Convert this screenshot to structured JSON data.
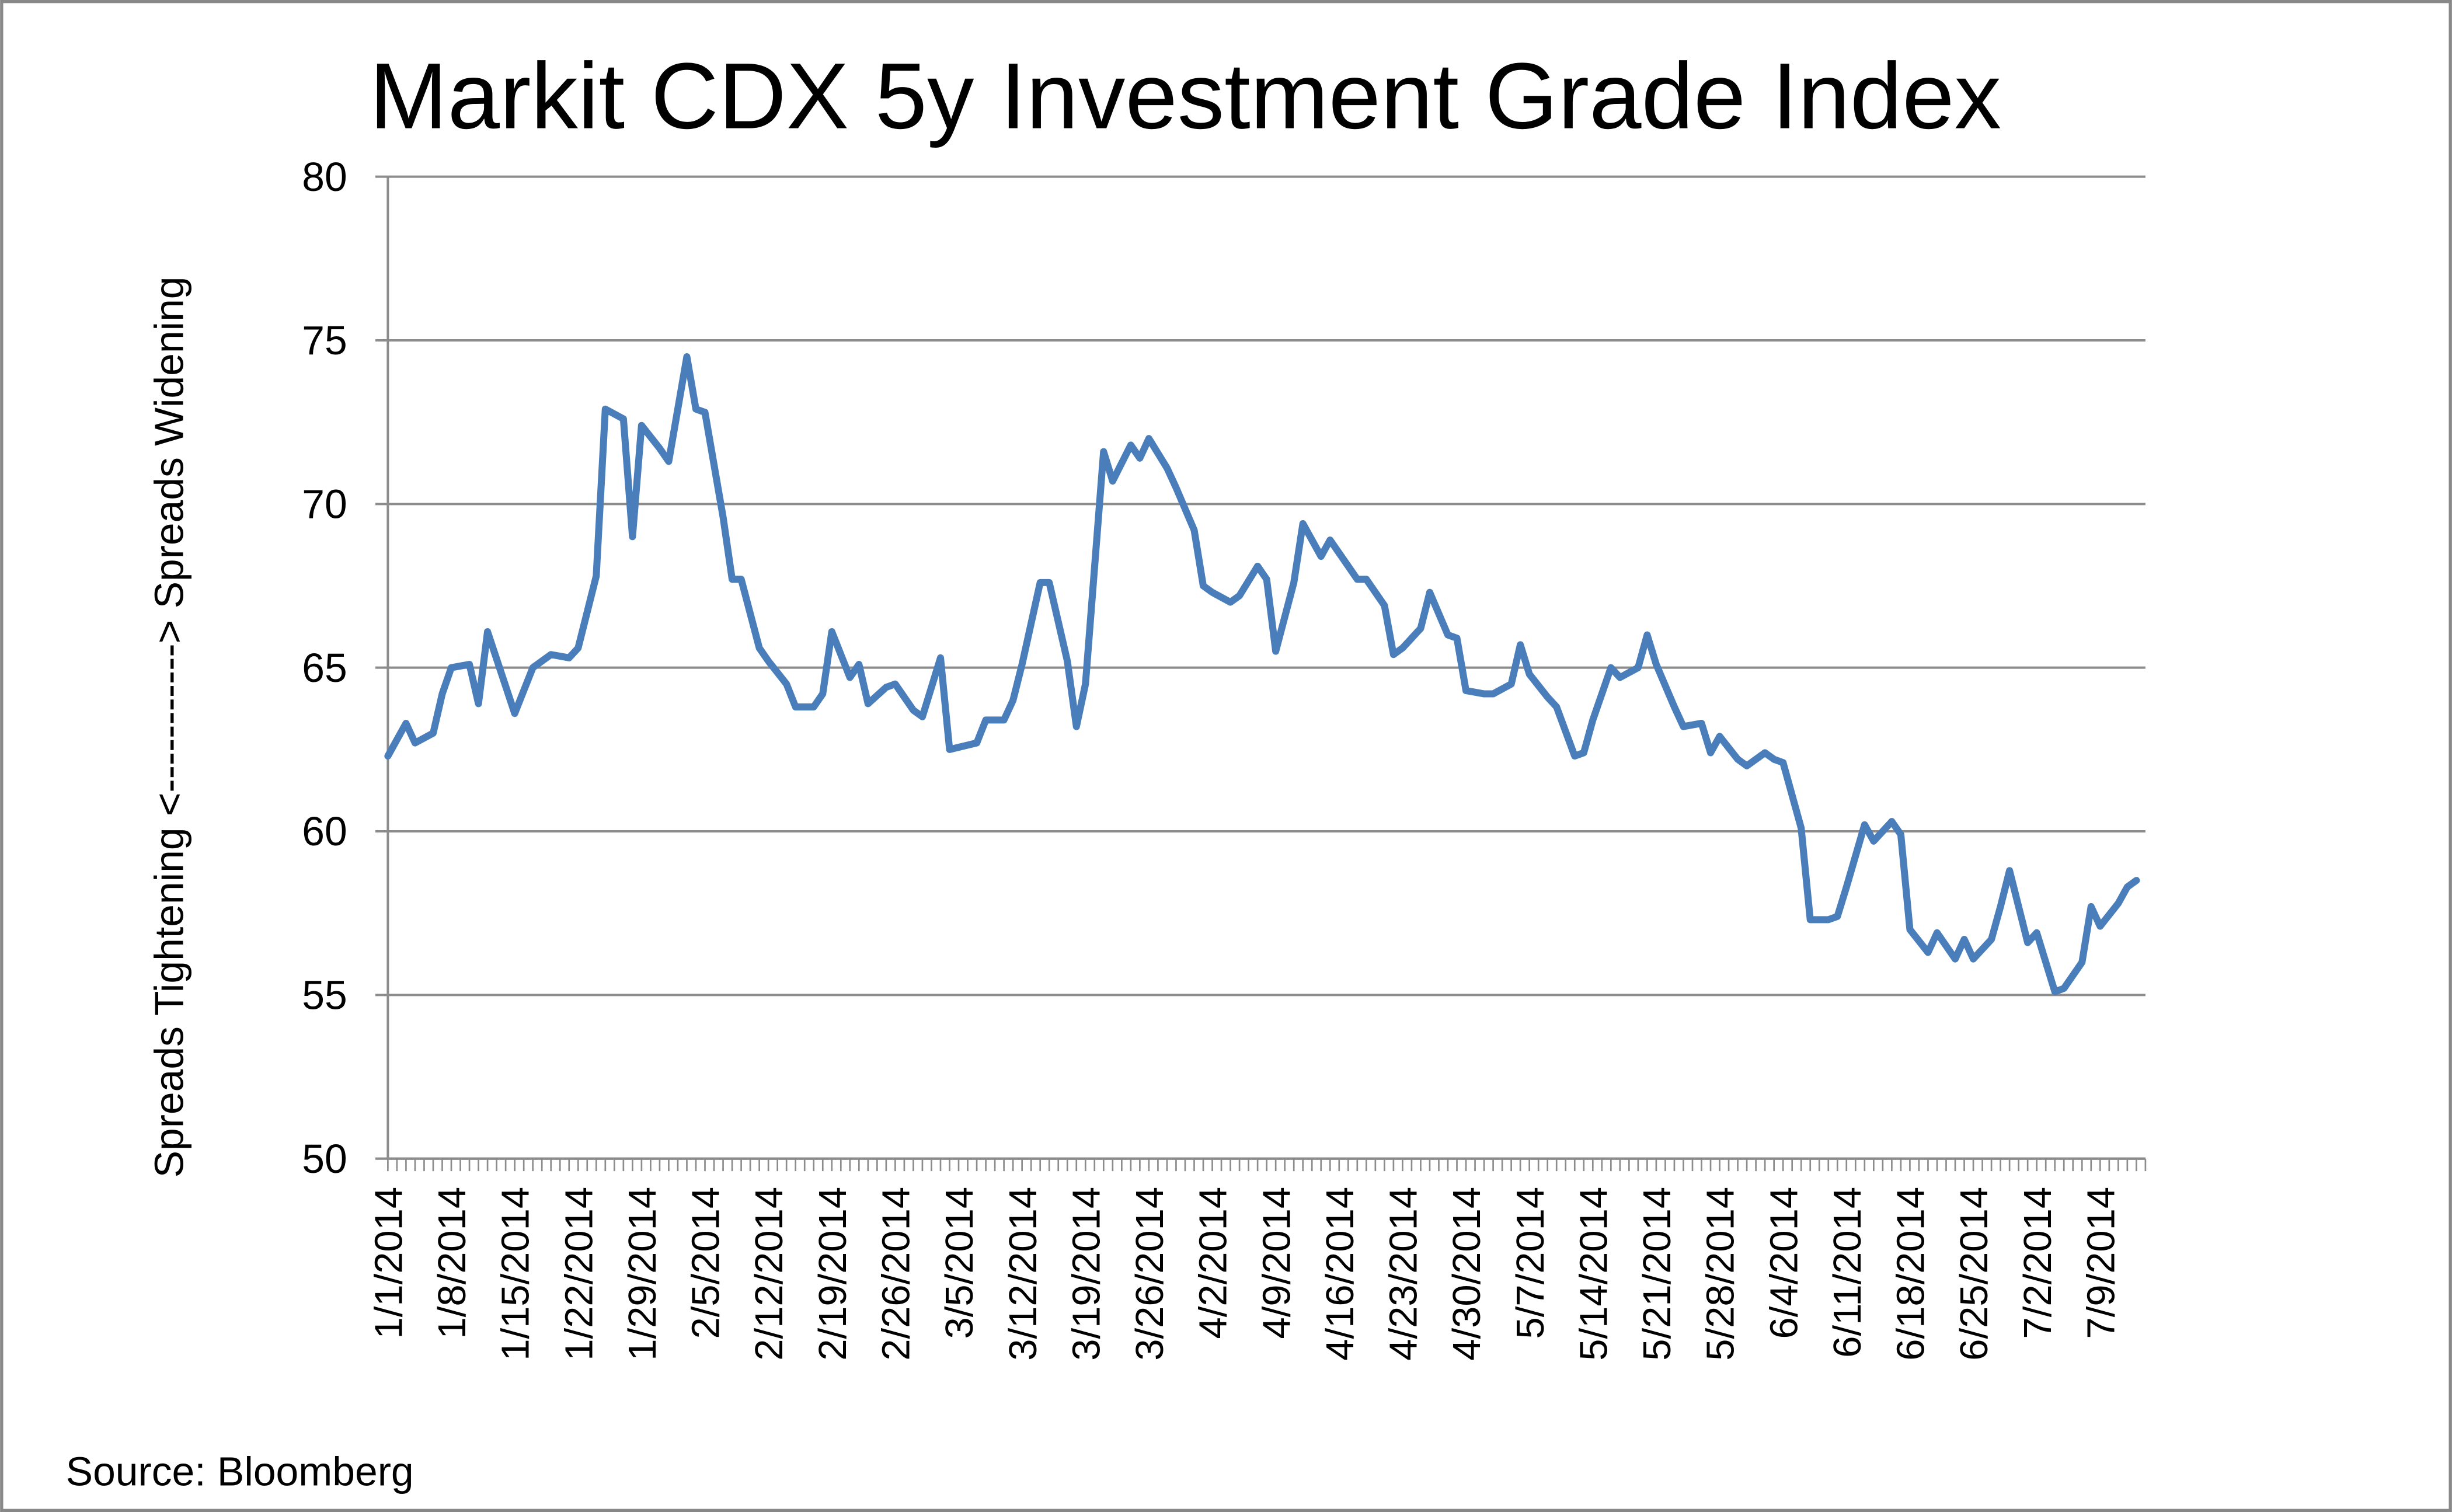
{
  "chart_data": {
    "type": "line",
    "title": "Markit CDX 5y Investment Grade Index",
    "ylabel": "Spreads Tightening  <-----------> Spreads Widening",
    "xlabel": "",
    "source": "Source: Bloomberg",
    "ylim": [
      50,
      80
    ],
    "yticks": [
      "50",
      "55",
      "60",
      "65",
      "70",
      "75",
      "80"
    ],
    "xlim": [
      "1/1/2014",
      "7/14/2014"
    ],
    "xticks": [
      "1/1/2014",
      "1/8/2014",
      "1/15/2014",
      "1/22/2014",
      "1/29/2014",
      "2/5/2014",
      "2/12/2014",
      "2/19/2014",
      "2/26/2014",
      "3/5/2014",
      "3/12/2014",
      "3/19/2014",
      "3/26/2014",
      "4/2/2014",
      "4/9/2014",
      "4/16/2014",
      "4/23/2014",
      "4/30/2014",
      "5/7/2014",
      "5/14/2014",
      "5/21/2014",
      "5/28/2014",
      "6/4/2014",
      "6/11/2014",
      "6/18/2014",
      "6/25/2014",
      "7/2/2014",
      "7/9/2014"
    ],
    "grid": true,
    "legend": "none",
    "line_color": "#4a7ebb",
    "series": [
      {
        "x": [
          "1/1",
          "1/3",
          "1/4",
          "1/6",
          "1/7",
          "1/8",
          "1/10",
          "1/11",
          "1/12",
          "1/15",
          "1/17",
          "1/19",
          "1/21",
          "1/22",
          "1/24",
          "1/25",
          "1/27",
          "1/28",
          "1/29",
          "1/31",
          "2/1",
          "2/3",
          "2/4",
          "2/5",
          "2/7",
          "2/8",
          "2/9",
          "2/11",
          "2/12",
          "2/14",
          "2/15",
          "2/17",
          "2/18",
          "2/19",
          "2/21",
          "2/22",
          "2/23",
          "2/25",
          "2/26",
          "2/28",
          "3/1",
          "3/3",
          "3/4",
          "3/7",
          "3/8",
          "3/10",
          "3/11",
          "3/12",
          "3/14",
          "3/15",
          "3/17",
          "3/18",
          "3/19",
          "3/21",
          "3/22",
          "3/24",
          "3/25",
          "3/26",
          "3/28",
          "3/29",
          "3/31",
          "4/1",
          "4/2",
          "4/4",
          "4/5",
          "4/7",
          "4/8",
          "4/9",
          "4/11",
          "4/12",
          "4/14",
          "4/15",
          "4/17",
          "4/18",
          "4/19",
          "4/21",
          "4/22",
          "4/23",
          "4/25",
          "4/26",
          "4/28",
          "4/29",
          "4/30",
          "5/2",
          "5/3",
          "5/5",
          "5/6",
          "5/7",
          "5/9",
          "5/10",
          "5/12",
          "5/13",
          "5/14",
          "5/16",
          "5/17",
          "5/19",
          "5/20",
          "5/21",
          "5/23",
          "5/24",
          "5/26",
          "5/27",
          "5/28",
          "5/30",
          "5/31",
          "6/2",
          "6/3",
          "6/4",
          "6/6",
          "6/7",
          "6/9",
          "6/10",
          "6/11",
          "6/13",
          "6/14",
          "6/16",
          "6/17",
          "6/18",
          "6/20",
          "6/21",
          "6/23",
          "6/24",
          "6/25",
          "6/27",
          "6/28",
          "6/29",
          "7/1",
          "7/2",
          "7/4",
          "7/5",
          "7/7",
          "7/8",
          "7/9",
          "7/11",
          "7/12",
          "7/13"
        ],
        "values": [
          62.3,
          63.3,
          62.7,
          63.0,
          64.2,
          65.0,
          65.1,
          63.9,
          66.1,
          63.6,
          65.0,
          65.4,
          65.3,
          65.6,
          67.8,
          72.9,
          72.6,
          69.0,
          72.4,
          71.7,
          71.3,
          74.5,
          72.9,
          72.8,
          69.6,
          67.7,
          67.7,
          65.6,
          65.2,
          64.5,
          63.8,
          63.8,
          64.2,
          66.1,
          64.7,
          65.1,
          63.9,
          64.4,
          64.5,
          63.7,
          63.5,
          65.3,
          62.5,
          62.7,
          63.4,
          63.4,
          64.0,
          65.1,
          67.6,
          67.6,
          65.2,
          63.2,
          64.5,
          71.6,
          70.7,
          71.8,
          71.4,
          72.0,
          71.1,
          70.5,
          69.2,
          67.5,
          67.3,
          67.0,
          67.2,
          68.1,
          67.7,
          65.5,
          67.6,
          69.4,
          68.4,
          68.9,
          68.1,
          67.7,
          67.7,
          66.9,
          65.4,
          65.6,
          66.2,
          67.3,
          66.0,
          65.9,
          64.3,
          64.2,
          64.2,
          64.5,
          65.7,
          64.8,
          64.1,
          63.8,
          62.3,
          62.4,
          63.4,
          65.0,
          64.7,
          65.0,
          66.0,
          65.1,
          63.8,
          63.2,
          63.3,
          62.4,
          62.9,
          62.2,
          62.0,
          62.4,
          62.2,
          62.1,
          60.1,
          57.3,
          57.3,
          57.4,
          58.3,
          60.2,
          59.7,
          60.3,
          59.9,
          57.0,
          56.3,
          56.9,
          56.1,
          56.7,
          56.1,
          56.7,
          57.7,
          58.8,
          56.6,
          56.9,
          55.1,
          55.2,
          56.0,
          57.7,
          57.1,
          57.8,
          58.3,
          58.5
        ]
      }
    ]
  }
}
